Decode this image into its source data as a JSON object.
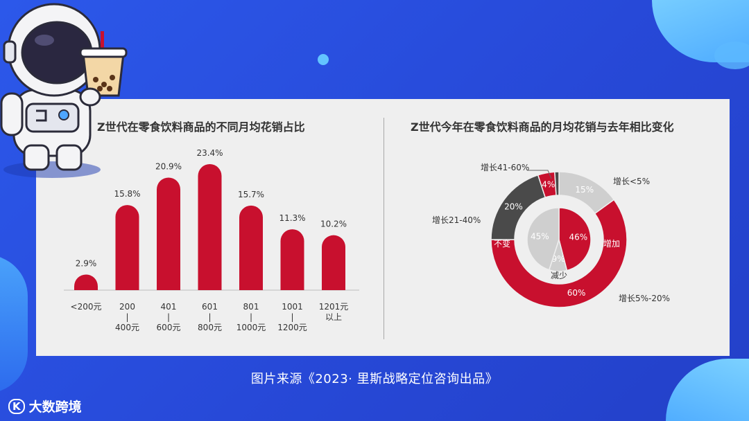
{
  "source_caption": "图片来源《2023· 里斯战略定位咨询出品》",
  "brand": {
    "mark": "K",
    "name": "大数跨境"
  },
  "colors": {
    "red": "#c8102e",
    "dark": "#4a4a4a",
    "light": "#cfcfcf",
    "background": "#efefef"
  },
  "chart_data": [
    {
      "type": "bar",
      "title": "Z世代在零食饮料商品的不同月均花销占比",
      "categories": [
        "<200元",
        "200 | 400元",
        "401 | 600元",
        "601 | 800元",
        "801 | 1000元",
        "1001 | 1200元",
        "1201元 以上"
      ],
      "category_lines": [
        [
          "<200元"
        ],
        [
          "200",
          "|",
          "400元"
        ],
        [
          "401",
          "|",
          "600元"
        ],
        [
          "601",
          "|",
          "800元"
        ],
        [
          "801",
          "|",
          "1000元"
        ],
        [
          "1001",
          "|",
          "1200元"
        ],
        [
          "1201元",
          "以上"
        ]
      ],
      "values": [
        2.9,
        15.8,
        20.9,
        23.4,
        15.7,
        11.3,
        10.2
      ],
      "value_labels": [
        "2.9%",
        "15.8%",
        "20.9%",
        "23.4%",
        "15.7%",
        "11.3%",
        "10.2%"
      ],
      "ylim": [
        0,
        25
      ],
      "grid": false
    },
    {
      "type": "pie",
      "title": "Z世代今年在零食饮料商品的月均花销与去年相比变化",
      "outer": {
        "slices": [
          {
            "label": "增长<5%",
            "value": 15,
            "value_label": "15%",
            "color": "#cfcfcf"
          },
          {
            "label": "增长5%-20%",
            "value": 60,
            "value_label": "60%",
            "color": "#c8102e"
          },
          {
            "label": "增长21-40%",
            "value": 20,
            "value_label": "20%",
            "color": "#4a4a4a"
          },
          {
            "label": "增长41-60%",
            "value": 4,
            "value_label": "4%",
            "color": "#c8102e"
          },
          {
            "label": "",
            "value": 1,
            "value_label": "",
            "color": "#4a4a4a"
          }
        ]
      },
      "inner": {
        "slices": [
          {
            "label": "增加",
            "value": 46,
            "value_label": "46%",
            "color": "#c8102e"
          },
          {
            "label": "减少",
            "value": 9,
            "value_label": "9%",
            "color": "#cfcfcf"
          },
          {
            "label": "不变",
            "value": 45,
            "value_label": "45%",
            "color": "#cfcfcf"
          }
        ]
      }
    }
  ]
}
